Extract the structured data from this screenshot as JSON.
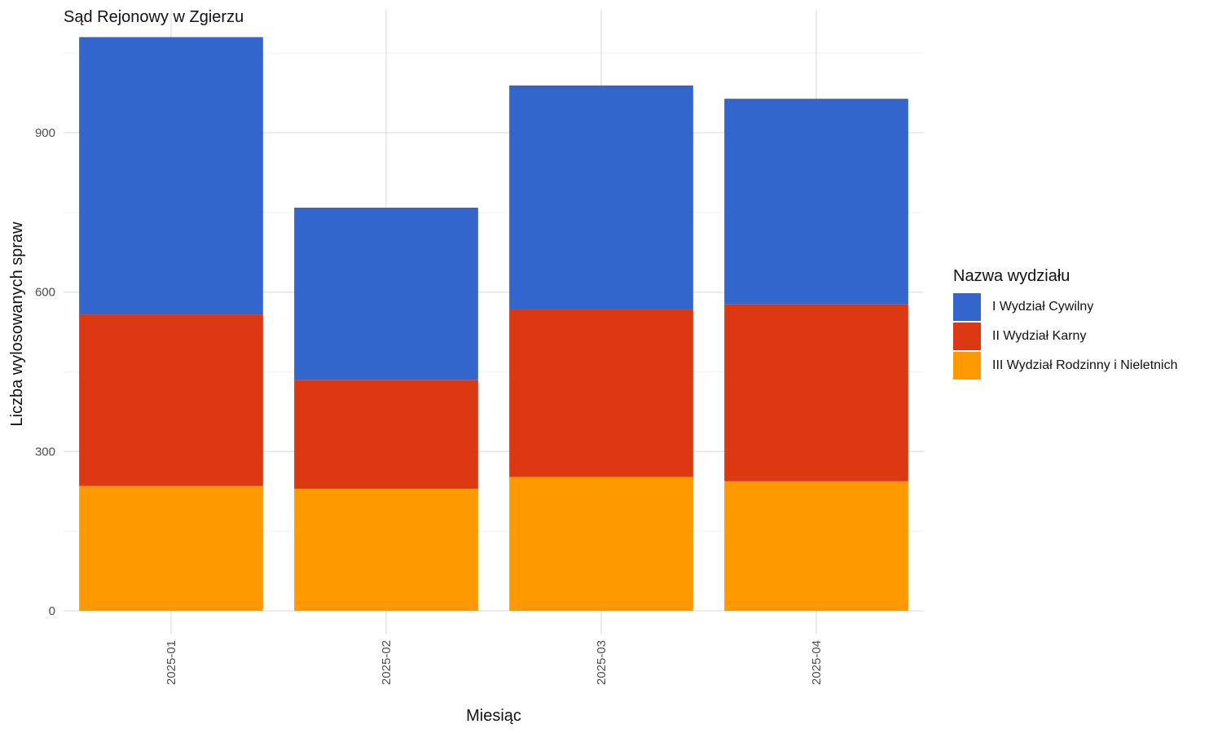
{
  "chart_data": {
    "type": "bar",
    "stacked": true,
    "title": "Sąd Rejonowy w Zgierzu",
    "xlabel": "Miesiąc",
    "ylabel": "Liczba wylosowanych spraw",
    "categories": [
      "2025-01",
      "2025-02",
      "2025-03",
      "2025-04"
    ],
    "yticks": [
      0,
      300,
      600,
      900
    ],
    "ylim": [
      0,
      1100
    ],
    "grid": true,
    "legend_title": "Nazwa wydziału",
    "legend_position": "right",
    "series": [
      {
        "name": "III Wydział Rodzinny i Nieletnich",
        "color": "#FF9900",
        "values": [
          235,
          230,
          252,
          244
        ]
      },
      {
        "name": "II Wydział Karny",
        "color": "#DC3912",
        "values": [
          323,
          205,
          316,
          333
        ]
      },
      {
        "name": "I Wydział Cywilny",
        "color": "#3366CC",
        "values": [
          522,
          324,
          421,
          387
        ]
      }
    ],
    "legend_order": [
      "I Wydział Cywilny",
      "II Wydział Karny",
      "III Wydział Rodzinny i Nieletnich"
    ]
  }
}
